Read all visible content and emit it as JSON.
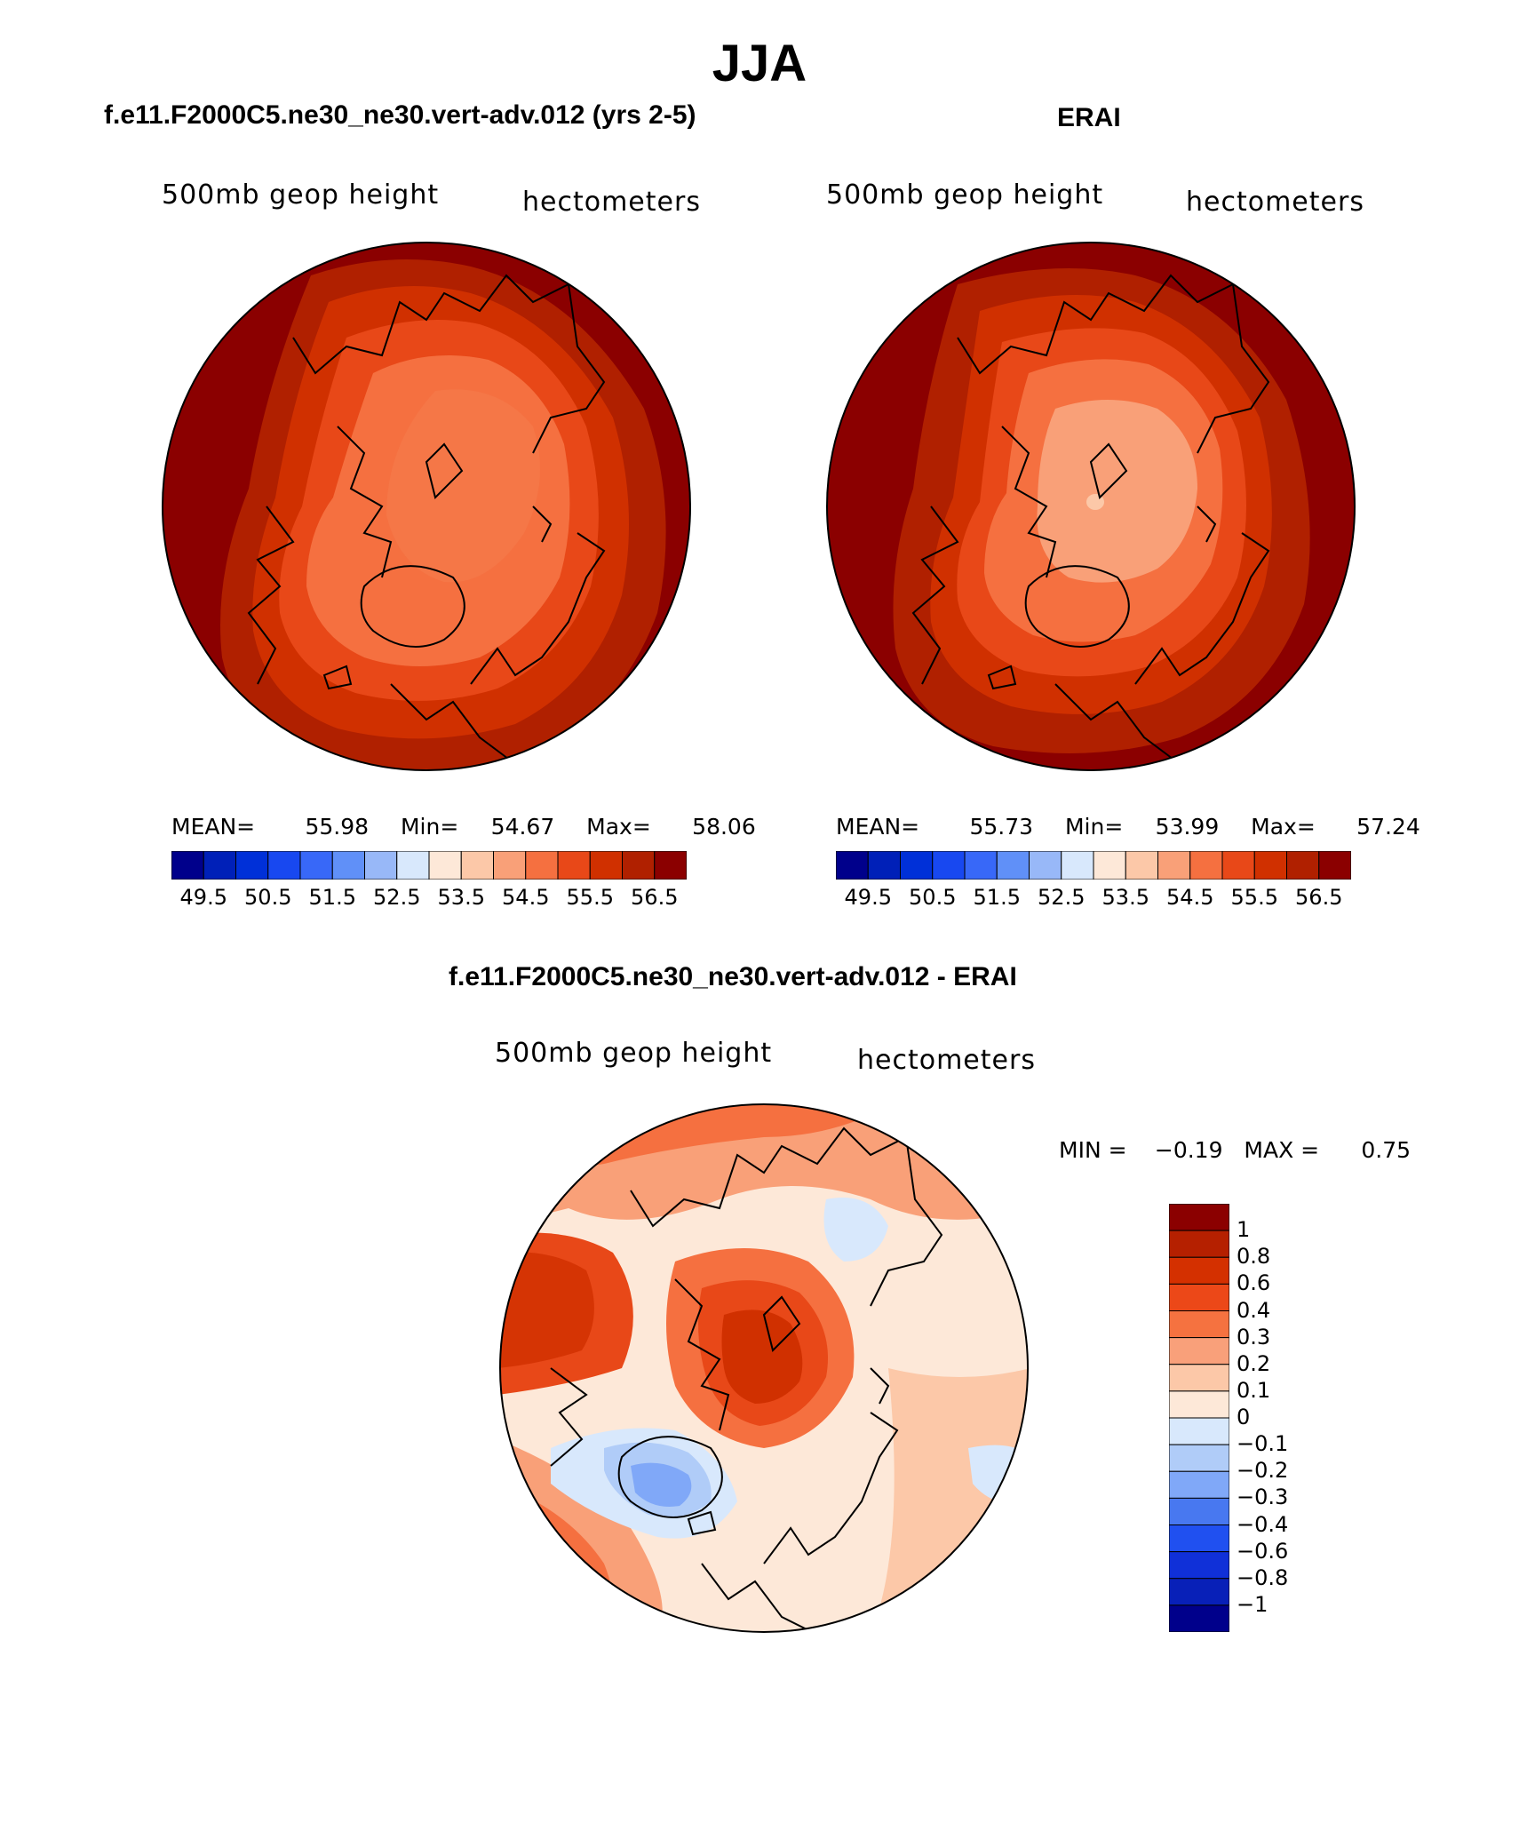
{
  "title": "JJA",
  "panels": [
    {
      "id": "model",
      "subtitle": "f.e11.F2000C5.ne30_ne30.vert-adv.012 (yrs 2-5)",
      "left_label": "500mb  geop  height",
      "right_label": "hectometers",
      "stats": {
        "mean_label": "MEAN=",
        "mean": "55.98",
        "min_label": "Min=",
        "min": "54.67",
        "max_label": "Max=",
        "max": "58.06"
      }
    },
    {
      "id": "obs",
      "subtitle": "ERAI",
      "left_label": "500mb  geop  height",
      "right_label": "hectometers",
      "stats": {
        "mean_label": "MEAN=",
        "mean": "55.73",
        "min_label": "Min=",
        "min": "53.99",
        "max_label": "Max=",
        "max": "57.24"
      }
    }
  ],
  "colorbar_abs": {
    "colors": [
      "#00008b",
      "#0020b8",
      "#0030d8",
      "#1848f0",
      "#3868f8",
      "#6090f8",
      "#98b8f8",
      "#d8e8fc",
      "#fde8d8",
      "#fcc8a8",
      "#f9a078",
      "#f57040",
      "#e84818",
      "#d03000",
      "#b02000",
      "#8b0000"
    ],
    "tick_labels": [
      "49.5",
      "50.5",
      "51.5",
      "52.5",
      "53.5",
      "54.5",
      "55.5",
      "56.5"
    ]
  },
  "diff": {
    "subtitle": "f.e11.F2000C5.ne30_ne30.vert-adv.012 - ERAI",
    "left_label": "500mb  geop  height",
    "right_label": "hectometers",
    "minmax": {
      "min_label": "MIN =",
      "min": "−0.19",
      "max_label": "MAX =",
      "max": "0.75"
    }
  },
  "colorbar_diff": {
    "colors": [
      "#8b0000",
      "#b52000",
      "#d43000",
      "#ec4818",
      "#f57240",
      "#f9a07a",
      "#fcc8a8",
      "#fde8d8",
      "#d8e8fc",
      "#b0ccf8",
      "#80a8f8",
      "#4878f0",
      "#2050f0",
      "#1030d8",
      "#0820b8",
      "#00008b"
    ],
    "tick_labels": [
      "1",
      "0.8",
      "0.6",
      "0.4",
      "0.3",
      "0.2",
      "0.1",
      "0",
      "−0.1",
      "−0.2",
      "−0.3",
      "−0.4",
      "−0.6",
      "−0.8",
      "−1"
    ]
  },
  "icons": [
    "polar-map-model",
    "polar-map-erai",
    "polar-map-difference"
  ]
}
